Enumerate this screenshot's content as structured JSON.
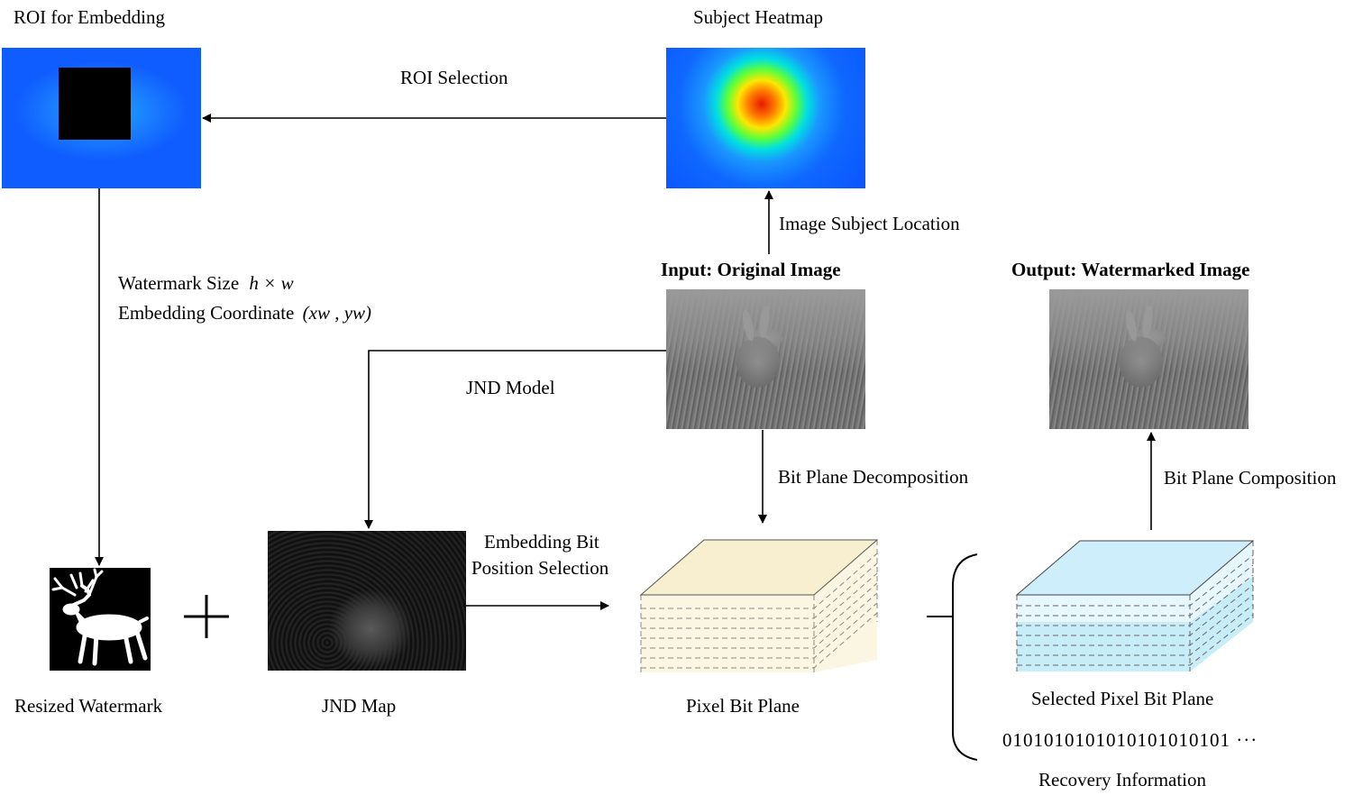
{
  "labels": {
    "roi_for_embedding": "ROI for Embedding",
    "subject_heatmap": "Subject Heatmap",
    "roi_selection": "ROI Selection",
    "image_subject_location": "Image Subject Location",
    "input_original_image": "Input: Original Image",
    "output_watermarked_image": "Output: Watermarked Image",
    "watermark_size": "Watermark Size",
    "watermark_size_var": "h × w",
    "embedding_coordinate": "Embedding Coordinate",
    "embedding_coordinate_var": "(xw , yw)",
    "jnd_model": "JND Model",
    "bit_plane_decomposition": "Bit Plane Decomposition",
    "bit_plane_composition": "Bit Plane Composition",
    "embedding_bit_line1": "Embedding Bit",
    "embedding_bit_line2": "Position Selection",
    "resized_watermark": "Resized Watermark",
    "jnd_map": "JND Map",
    "pixel_bit_plane": "Pixel Bit Plane",
    "selected_pixel_bit_plane": "Selected Pixel Bit Plane",
    "binary_sequence": "0101010101010101010101 ···",
    "recovery_information": "Recovery Information",
    "plus_sign": "+"
  },
  "colors": {
    "pixel_plane_fill": "#f7efcf",
    "selected_plane_fill": "#cdeefa",
    "selected_plane_bottom": "#bfeaf7"
  },
  "icons": {
    "plus": "plus-icon",
    "brace": "left-brace-icon"
  }
}
